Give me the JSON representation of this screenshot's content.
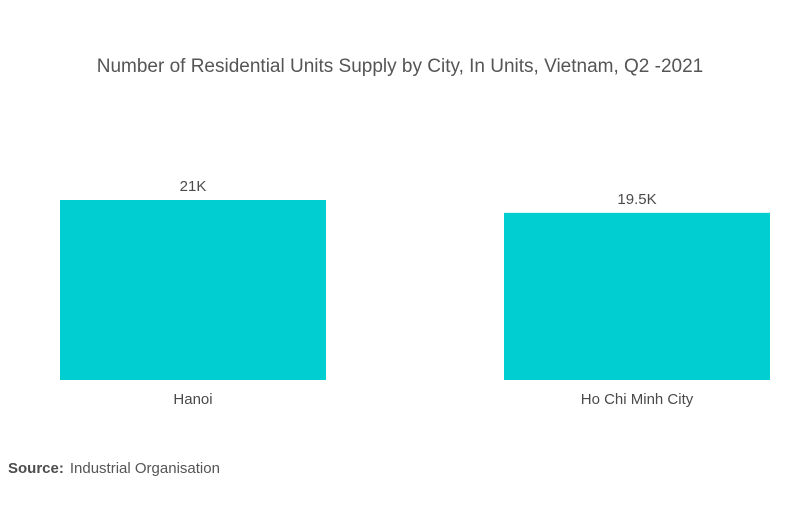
{
  "chart_data": {
    "type": "bar",
    "title": "Number of  Residential Units Supply by City, In Units, Vietnam, Q2 -2021",
    "xlabel": "",
    "ylabel": "",
    "categories": [
      "Hanoi",
      "Ho Chi Minh City"
    ],
    "values": [
      21000,
      19500
    ],
    "data_labels": [
      "21K",
      "19.5K"
    ],
    "ylim": [
      0,
      21000
    ],
    "grid": false,
    "legend": "none",
    "bar_color": "#00CED1"
  },
  "source": {
    "label": "Source:",
    "value": "Industrial Organisation"
  }
}
